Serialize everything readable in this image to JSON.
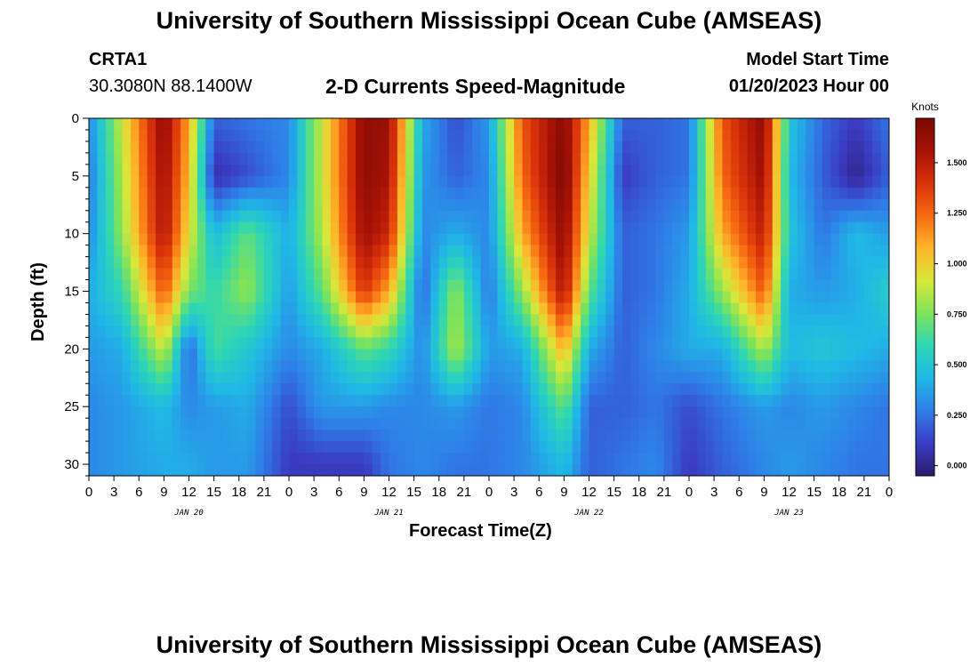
{
  "header": {
    "title": "University of Southern Mississippi Ocean Cube (AMSEAS)",
    "footer_title": "University of Southern Mississippi Ocean Cube (AMSEAS)",
    "station_id": "CRTA1",
    "location": "30.3080N  88.1400W",
    "plot_title": "2-D Currents Speed-Magnitude",
    "model_start_label": "Model Start Time",
    "model_start_value": "01/20/2023 Hour 00"
  },
  "chart_data": {
    "type": "heatmap",
    "title": "2-D Currents Speed-Magnitude",
    "xlabel": "Forecast Time(Z)",
    "ylabel": "Depth (ft)",
    "x_range_hours": [
      0,
      96
    ],
    "ylim": [
      0,
      31
    ],
    "y_inverted": true,
    "x_tick_labels": [
      "0",
      "3",
      "6",
      "9",
      "12",
      "15",
      "18",
      "21",
      "0",
      "3",
      "6",
      "9",
      "12",
      "15",
      "18",
      "21",
      "0",
      "3",
      "6",
      "9",
      "12",
      "15",
      "18",
      "21",
      "0",
      "3",
      "6",
      "9",
      "12",
      "15",
      "18",
      "21",
      "0"
    ],
    "y_ticks": [
      0,
      5,
      10,
      15,
      20,
      25,
      30
    ],
    "day_labels": [
      {
        "label": "JAN 20",
        "hour": 12
      },
      {
        "label": "JAN 21",
        "hour": 36
      },
      {
        "label": "JAN 22",
        "hour": 60
      },
      {
        "label": "JAN 23",
        "hour": 84
      }
    ],
    "colorbar": {
      "title": "Knots",
      "min": -0.05,
      "max": 1.72,
      "ticks": [
        0.0,
        0.25,
        0.5,
        0.75,
        1.0,
        1.25,
        1.5
      ],
      "tick_labels": [
        "0.000",
        "0.250",
        "0.500",
        "0.750",
        "1.000",
        "1.250",
        "1.500"
      ],
      "colors": [
        "#2b1a6e",
        "#3a3cc4",
        "#2f7ee8",
        "#20b8e6",
        "#2ed6b4",
        "#7de35a",
        "#d8e83a",
        "#ffb62a",
        "#f66a12",
        "#d9320a",
        "#a81206",
        "#7a0a04"
      ]
    },
    "grid": false,
    "legend": "right",
    "speed_knots_by_depth_and_hour": {
      "depths_ft": [
        0,
        5,
        10,
        15,
        20,
        25,
        30
      ],
      "hours": [
        0,
        4,
        9,
        12,
        15,
        19,
        24,
        28,
        33,
        36,
        40,
        44,
        48,
        52,
        57,
        60,
        64,
        68,
        72,
        76,
        81,
        84,
        88,
        92,
        96
      ],
      "rows": [
        [
          0.3,
          0.9,
          1.65,
          1.1,
          0.2,
          0.25,
          0.3,
          0.9,
          1.65,
          1.6,
          0.4,
          0.15,
          0.35,
          1.3,
          1.68,
          1.1,
          0.2,
          0.2,
          0.25,
          1.3,
          1.65,
          0.5,
          0.22,
          0.1,
          0.25
        ],
        [
          0.25,
          0.85,
          1.6,
          1.05,
          0.05,
          0.15,
          0.3,
          0.9,
          1.65,
          1.55,
          0.35,
          0.2,
          0.3,
          1.25,
          1.72,
          1.0,
          0.1,
          0.2,
          0.25,
          1.25,
          1.6,
          0.45,
          0.2,
          0.0,
          0.2
        ],
        [
          0.3,
          0.8,
          1.55,
          0.95,
          0.45,
          0.7,
          0.4,
          0.85,
          1.6,
          1.45,
          0.3,
          0.4,
          0.3,
          1.1,
          1.65,
          0.9,
          0.2,
          0.25,
          0.35,
          1.1,
          1.5,
          0.5,
          0.25,
          0.45,
          0.35
        ],
        [
          0.4,
          0.6,
          1.3,
          0.75,
          0.6,
          0.8,
          0.35,
          0.7,
          1.4,
          1.1,
          0.2,
          0.8,
          0.25,
          0.8,
          1.55,
          0.7,
          0.2,
          0.25,
          0.4,
          0.8,
          1.3,
          0.4,
          0.35,
          0.4,
          0.55
        ],
        [
          0.35,
          0.4,
          0.9,
          0.2,
          0.65,
          0.5,
          0.3,
          0.4,
          0.7,
          0.6,
          0.3,
          0.85,
          0.35,
          0.4,
          1.1,
          0.4,
          0.2,
          0.3,
          0.4,
          0.4,
          0.85,
          0.45,
          0.5,
          0.45,
          0.4
        ],
        [
          0.3,
          0.35,
          0.45,
          0.3,
          0.35,
          0.4,
          0.15,
          0.35,
          0.35,
          0.3,
          0.3,
          0.35,
          0.25,
          0.3,
          0.7,
          0.2,
          0.2,
          0.25,
          0.15,
          0.25,
          0.35,
          0.3,
          0.35,
          0.3,
          0.25
        ],
        [
          0.3,
          0.35,
          0.4,
          0.4,
          0.35,
          0.35,
          0.1,
          0.1,
          0.1,
          0.25,
          0.3,
          0.25,
          0.25,
          0.3,
          0.45,
          0.2,
          0.25,
          0.3,
          0.1,
          0.2,
          0.3,
          0.35,
          0.3,
          0.25,
          0.25
        ]
      ]
    }
  }
}
